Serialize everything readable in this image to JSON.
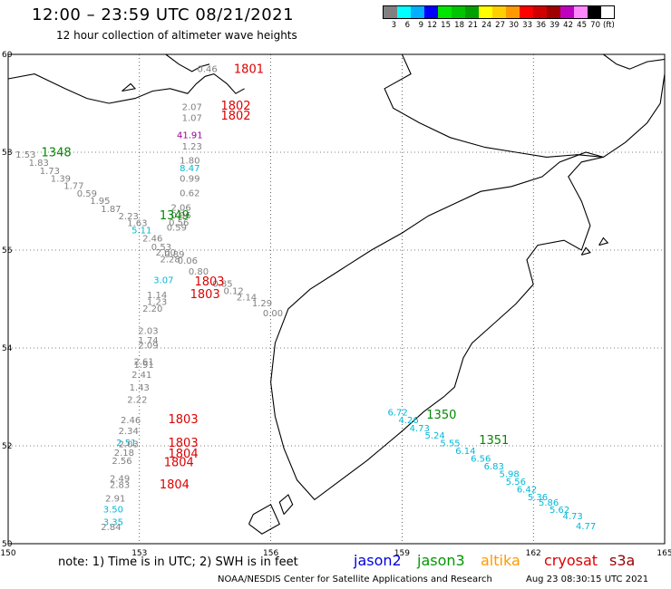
{
  "header": {
    "title": "12:00 – 23:59 UTC 08/21/2021",
    "subtitle": "12 hour collection of altimeter wave heights"
  },
  "legend": {
    "colors": [
      "#808080",
      "#00ffff",
      "#00b0ff",
      "#0000ff",
      "#00e600",
      "#00c400",
      "#00a000",
      "#ffff00",
      "#ffd000",
      "#ff9900",
      "#ff0000",
      "#d00000",
      "#a00000",
      "#c000c0",
      "#ff88ff",
      "#000000"
    ],
    "ticks": [
      "3",
      "6",
      "9",
      "12",
      "15",
      "18",
      "21",
      "24",
      "27",
      "30",
      "33",
      "36",
      "39",
      "42",
      "45",
      "70"
    ],
    "unit": "(ft)"
  },
  "axes": {
    "lon_ticks": [
      "150",
      "153",
      "156",
      "159",
      "162",
      "165"
    ],
    "lat_ticks": [
      "50",
      "52",
      "54",
      "56",
      "58",
      "60"
    ]
  },
  "map": {
    "track_labels": [
      {
        "text": "1348",
        "color": "#008800",
        "lon": 151.1,
        "lat": 57.92
      },
      {
        "text": "1349",
        "color": "#008800",
        "lon": 153.8,
        "lat": 56.63
      },
      {
        "text": "1350",
        "color": "#008800",
        "lon": 159.9,
        "lat": 52.56
      },
      {
        "text": "1351",
        "color": "#008800",
        "lon": 161.1,
        "lat": 52.04
      },
      {
        "text": "1801",
        "color": "#dd0000",
        "lon": 155.5,
        "lat": 59.62
      },
      {
        "text": "1802",
        "color": "#dd0000",
        "lon": 155.2,
        "lat": 58.87
      },
      {
        "text": "1802",
        "color": "#dd0000",
        "lon": 155.2,
        "lat": 58.67
      },
      {
        "text": "1803",
        "color": "#dd0000",
        "lon": 154.6,
        "lat": 55.28
      },
      {
        "text": "1803",
        "color": "#dd0000",
        "lon": 154.5,
        "lat": 55.02
      },
      {
        "text": "1803",
        "color": "#dd0000",
        "lon": 154.0,
        "lat": 52.46
      },
      {
        "text": "1803",
        "color": "#dd0000",
        "lon": 154.0,
        "lat": 51.98
      },
      {
        "text": "1804",
        "color": "#dd0000",
        "lon": 154.0,
        "lat": 51.76
      },
      {
        "text": "1804",
        "color": "#dd0000",
        "lon": 153.9,
        "lat": 51.58
      },
      {
        "text": "1804",
        "color": "#dd0000",
        "lon": 153.8,
        "lat": 51.13
      }
    ],
    "points": [
      {
        "v": "0.46",
        "c": "#808080",
        "lon": 154.55,
        "lat": 59.64
      },
      {
        "v": "2.07",
        "c": "#808080",
        "lon": 154.2,
        "lat": 58.86
      },
      {
        "v": "1.07",
        "c": "#808080",
        "lon": 154.2,
        "lat": 58.64
      },
      {
        "v": "41.91",
        "c": "#990099",
        "lon": 154.15,
        "lat": 58.29
      },
      {
        "v": "1.23",
        "c": "#808080",
        "lon": 154.2,
        "lat": 58.06
      },
      {
        "v": "1.53",
        "c": "#808080",
        "lon": 150.4,
        "lat": 57.89
      },
      {
        "v": "1.83",
        "c": "#808080",
        "lon": 150.7,
        "lat": 57.72
      },
      {
        "v": "1.73",
        "c": "#808080",
        "lon": 150.95,
        "lat": 57.56
      },
      {
        "v": "1.39",
        "c": "#808080",
        "lon": 151.2,
        "lat": 57.4
      },
      {
        "v": "1.77",
        "c": "#808080",
        "lon": 151.5,
        "lat": 57.25
      },
      {
        "v": "0.59",
        "c": "#808080",
        "lon": 151.8,
        "lat": 57.09
      },
      {
        "v": "1.95",
        "c": "#808080",
        "lon": 152.1,
        "lat": 56.94
      },
      {
        "v": "1.87",
        "c": "#808080",
        "lon": 152.35,
        "lat": 56.78
      },
      {
        "v": "2.23",
        "c": "#808080",
        "lon": 152.75,
        "lat": 56.63
      },
      {
        "v": "1.63",
        "c": "#808080",
        "lon": 152.95,
        "lat": 56.49
      },
      {
        "v": "5.11",
        "c": "#00b8d8",
        "lon": 153.05,
        "lat": 56.34
      },
      {
        "v": "1.80",
        "c": "#808080",
        "lon": 154.15,
        "lat": 57.77
      },
      {
        "v": "8.47",
        "c": "#00b8d8",
        "lon": 154.15,
        "lat": 57.61
      },
      {
        "v": "0.99",
        "c": "#808080",
        "lon": 154.15,
        "lat": 57.4
      },
      {
        "v": "0.62",
        "c": "#808080",
        "lon": 154.15,
        "lat": 57.1
      },
      {
        "v": "2.06",
        "c": "#808080",
        "lon": 153.95,
        "lat": 56.81
      },
      {
        "v": "0.96",
        "c": "#808080",
        "lon": 153.95,
        "lat": 56.65
      },
      {
        "v": "0.56",
        "c": "#808080",
        "lon": 153.9,
        "lat": 56.5
      },
      {
        "v": "0.59",
        "c": "#808080",
        "lon": 153.85,
        "lat": 56.4
      },
      {
        "v": "2.46",
        "c": "#808080",
        "lon": 153.3,
        "lat": 56.18
      },
      {
        "v": "0.53",
        "c": "#808080",
        "lon": 153.5,
        "lat": 56.0
      },
      {
        "v": "2.00",
        "c": "#808080",
        "lon": 153.6,
        "lat": 55.89
      },
      {
        "v": "0.89",
        "c": "#808080",
        "lon": 153.8,
        "lat": 55.85
      },
      {
        "v": "2.28",
        "c": "#808080",
        "lon": 153.7,
        "lat": 55.75
      },
      {
        "v": "0.06",
        "c": "#808080",
        "lon": 154.1,
        "lat": 55.72
      },
      {
        "v": "0.80",
        "c": "#808080",
        "lon": 154.35,
        "lat": 55.5
      },
      {
        "v": "3.07",
        "c": "#00b8d8",
        "lon": 153.55,
        "lat": 55.32
      },
      {
        "v": "0.85",
        "c": "#808080",
        "lon": 154.9,
        "lat": 55.25
      },
      {
        "v": "0.12",
        "c": "#808080",
        "lon": 155.15,
        "lat": 55.1
      },
      {
        "v": "1.14",
        "c": "#808080",
        "lon": 153.4,
        "lat": 55.02
      },
      {
        "v": "2.14",
        "c": "#808080",
        "lon": 155.45,
        "lat": 54.97
      },
      {
        "v": "1.23",
        "c": "#808080",
        "lon": 153.4,
        "lat": 54.88
      },
      {
        "v": "1.29",
        "c": "#808080",
        "lon": 155.8,
        "lat": 54.85
      },
      {
        "v": "2.20",
        "c": "#808080",
        "lon": 153.3,
        "lat": 54.74
      },
      {
        "v": "0.00",
        "c": "#808080",
        "lon": 156.05,
        "lat": 54.65
      },
      {
        "v": "2.03",
        "c": "#808080",
        "lon": 153.2,
        "lat": 54.29
      },
      {
        "v": "1.74",
        "c": "#808080",
        "lon": 153.2,
        "lat": 54.09
      },
      {
        "v": "2.09",
        "c": "#808080",
        "lon": 153.2,
        "lat": 53.99
      },
      {
        "v": "2.61",
        "c": "#808080",
        "lon": 153.1,
        "lat": 53.66
      },
      {
        "v": "1.91",
        "c": "#808080",
        "lon": 153.1,
        "lat": 53.59
      },
      {
        "v": "2.41",
        "c": "#808080",
        "lon": 153.05,
        "lat": 53.39
      },
      {
        "v": "1.43",
        "c": "#808080",
        "lon": 153.0,
        "lat": 53.13
      },
      {
        "v": "2.22",
        "c": "#808080",
        "lon": 152.95,
        "lat": 52.88
      },
      {
        "v": "2.46",
        "c": "#808080",
        "lon": 152.8,
        "lat": 52.46
      },
      {
        "v": "2.34",
        "c": "#808080",
        "lon": 152.75,
        "lat": 52.24
      },
      {
        "v": "2.51",
        "c": "#00b8d8",
        "lon": 152.7,
        "lat": 52.0
      },
      {
        "v": "2.03",
        "c": "#808080",
        "lon": 152.75,
        "lat": 51.97
      },
      {
        "v": "2.18",
        "c": "#808080",
        "lon": 152.65,
        "lat": 51.8
      },
      {
        "v": "2.56",
        "c": "#808080",
        "lon": 152.6,
        "lat": 51.63
      },
      {
        "v": "2.49",
        "c": "#808080",
        "lon": 152.55,
        "lat": 51.27
      },
      {
        "v": "2.83",
        "c": "#808080",
        "lon": 152.55,
        "lat": 51.14
      },
      {
        "v": "2.91",
        "c": "#808080",
        "lon": 152.45,
        "lat": 50.86
      },
      {
        "v": "3.50",
        "c": "#00b8d8",
        "lon": 152.4,
        "lat": 50.64
      },
      {
        "v": "3.35",
        "c": "#00b8d8",
        "lon": 152.4,
        "lat": 50.38
      },
      {
        "v": "2.84",
        "c": "#808080",
        "lon": 152.35,
        "lat": 50.28
      },
      {
        "v": "6.72",
        "c": "#00b8d8",
        "lon": 158.9,
        "lat": 52.62
      },
      {
        "v": "4.26",
        "c": "#00b8d8",
        "lon": 159.15,
        "lat": 52.46
      },
      {
        "v": "4.73",
        "c": "#00b8d8",
        "lon": 159.4,
        "lat": 52.3
      },
      {
        "v": "5.24",
        "c": "#00b8d8",
        "lon": 159.75,
        "lat": 52.15
      },
      {
        "v": "5.55",
        "c": "#00b8d8",
        "lon": 160.1,
        "lat": 51.99
      },
      {
        "v": "6.14",
        "c": "#00b8d8",
        "lon": 160.45,
        "lat": 51.83
      },
      {
        "v": "6.56",
        "c": "#00b8d8",
        "lon": 160.8,
        "lat": 51.68
      },
      {
        "v": "6.83",
        "c": "#00b8d8",
        "lon": 161.1,
        "lat": 51.52
      },
      {
        "v": "5.98",
        "c": "#00b8d8",
        "lon": 161.45,
        "lat": 51.36
      },
      {
        "v": "5.56",
        "c": "#00b8d8",
        "lon": 161.6,
        "lat": 51.2
      },
      {
        "v": "6.42",
        "c": "#00b8d8",
        "lon": 161.85,
        "lat": 51.05
      },
      {
        "v": "5.36",
        "c": "#00b8d8",
        "lon": 162.1,
        "lat": 50.89
      },
      {
        "v": "5.86",
        "c": "#00b8d8",
        "lon": 162.35,
        "lat": 50.78
      },
      {
        "v": "5.62",
        "c": "#00b8d8",
        "lon": 162.6,
        "lat": 50.63
      },
      {
        "v": "4.73",
        "c": "#00b8d8",
        "lon": 162.9,
        "lat": 50.5
      },
      {
        "v": "4.77",
        "c": "#00b8d8",
        "lon": 163.2,
        "lat": 50.3
      }
    ]
  },
  "footer": {
    "note": "note:  1) Time is in UTC;  2) SWH is in feet",
    "satellites": [
      {
        "name": "jason2",
        "color": "#0000dd"
      },
      {
        "name": "jason3",
        "color": "#009900"
      },
      {
        "name": "altika",
        "color": "#ff9900"
      },
      {
        "name": "cryosat",
        "color": "#dd0000"
      },
      {
        "name": "s3a",
        "color": "#990000"
      }
    ],
    "credit": "NOAA/NESDIS Center for Satellite Applications and Research",
    "timestamp": "Aug 23 08:30:15 UTC 2021"
  }
}
